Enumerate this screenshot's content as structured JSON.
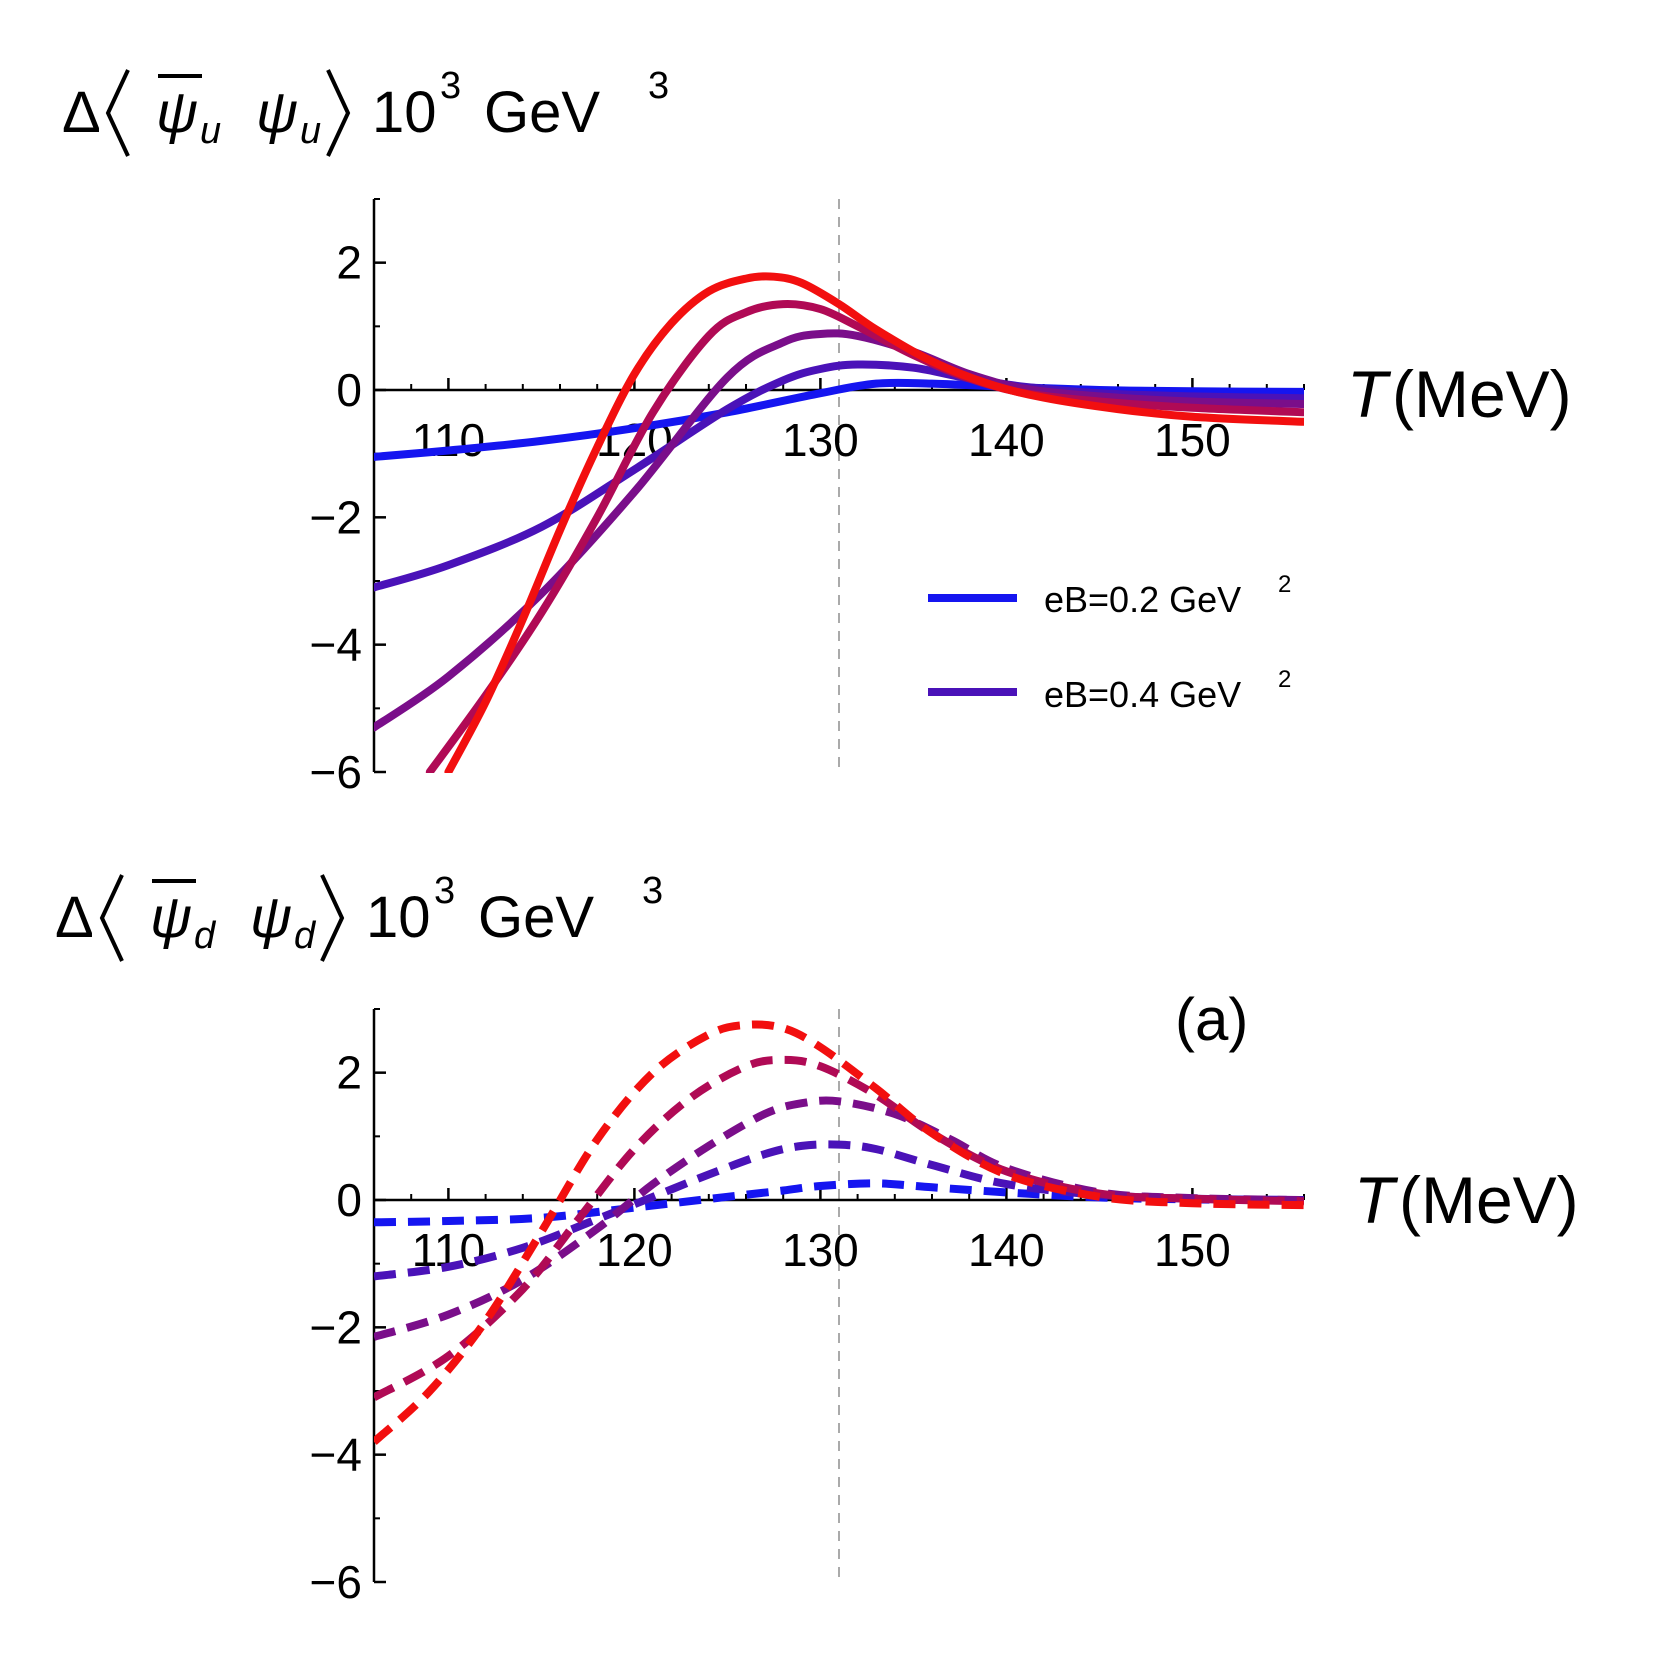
{
  "chart_data": [
    {
      "type": "line",
      "panel": "top",
      "ylabel": {
        "prefix": "Δ",
        "psi_bar": "ψ",
        "sub1": "u",
        "psi": "ψ",
        "sub2": "u",
        "unit": "10",
        "unit_exp": "3",
        "unit_tail": "GeV",
        "unit_tail_exp": "3"
      },
      "xlabel": {
        "var": "T",
        "unit": "(MeV)"
      },
      "xlim": [
        106,
        156
      ],
      "ylim": [
        -6,
        3
      ],
      "xticks": [
        "110",
        "120",
        "130",
        "140",
        "150"
      ],
      "yticks": [
        "2",
        "0",
        "−2",
        "−4",
        "−6"
      ],
      "xtick_values": [
        110,
        120,
        130,
        140,
        150
      ],
      "ytick_values": [
        2,
        0,
        -2,
        -4,
        -6
      ],
      "reference_line_x": 131,
      "line_style": "solid",
      "legend": [
        {
          "label": "eB=0.2 GeV",
          "exp": "2",
          "color": "#1515f0"
        },
        {
          "label": "eB=0.4 GeV",
          "exp": "2",
          "color": "#4a12b8"
        }
      ],
      "series": [
        {
          "color": "#1515f0",
          "x": [
            106,
            110,
            115,
            120,
            125,
            130,
            133,
            136,
            140,
            145,
            150,
            156
          ],
          "y": [
            -1.05,
            -0.95,
            -0.8,
            -0.6,
            -0.35,
            -0.05,
            0.1,
            0.1,
            0.05,
            0.0,
            -0.02,
            -0.03
          ]
        },
        {
          "color": "#4a12b8",
          "x": [
            106,
            110,
            115,
            120,
            125,
            128,
            130,
            132,
            135,
            138,
            141,
            145,
            150,
            156
          ],
          "y": [
            -3.1,
            -2.75,
            -2.15,
            -1.25,
            -0.3,
            0.15,
            0.33,
            0.4,
            0.35,
            0.18,
            0.05,
            -0.05,
            -0.1,
            -0.13
          ]
        },
        {
          "color": "#7a0e8a",
          "x": [
            106,
            110,
            115,
            120,
            125,
            128,
            130,
            132,
            135,
            138,
            141,
            145,
            150,
            156
          ],
          "y": [
            -5.3,
            -4.5,
            -3.2,
            -1.6,
            0.2,
            0.75,
            0.88,
            0.85,
            0.6,
            0.25,
            0.02,
            -0.1,
            -0.18,
            -0.22
          ]
        },
        {
          "color": "#b00a55",
          "x": [
            109,
            112,
            115,
            118,
            121,
            124,
            126,
            128,
            130,
            132,
            135,
            138,
            141,
            145,
            150,
            156
          ],
          "y": [
            -6.0,
            -4.8,
            -3.5,
            -2.0,
            -0.35,
            0.85,
            1.22,
            1.35,
            1.27,
            1.0,
            0.55,
            0.18,
            -0.05,
            -0.18,
            -0.28,
            -0.35
          ]
        },
        {
          "color": "#f20f0f",
          "x": [
            110,
            112,
            114,
            116,
            118,
            120,
            122,
            124,
            126,
            127.5,
            129,
            131,
            133,
            136,
            139,
            142,
            146,
            150,
            156
          ],
          "y": [
            -6.0,
            -4.9,
            -3.6,
            -2.2,
            -0.9,
            0.25,
            1.05,
            1.55,
            1.75,
            1.78,
            1.68,
            1.35,
            0.95,
            0.45,
            0.1,
            -0.12,
            -0.3,
            -0.42,
            -0.5
          ]
        }
      ]
    },
    {
      "type": "line",
      "panel": "bottom",
      "ylabel": {
        "prefix": "Δ",
        "psi_bar": "ψ",
        "sub1": "d",
        "psi": "ψ",
        "sub2": "d",
        "unit": "10",
        "unit_exp": "3",
        "unit_tail": "GeV",
        "unit_tail_exp": "3"
      },
      "xlabel": {
        "var": "T",
        "unit": "(MeV)"
      },
      "annotation": "(a)",
      "xlim": [
        106,
        156
      ],
      "ylim": [
        -6,
        3
      ],
      "xticks": [
        "110",
        "120",
        "130",
        "140",
        "150"
      ],
      "yticks": [
        "2",
        "0",
        "−2",
        "−4",
        "−6"
      ],
      "xtick_values": [
        110,
        120,
        130,
        140,
        150
      ],
      "ytick_values": [
        2,
        0,
        -2,
        -4,
        -6
      ],
      "reference_line_x": 131,
      "line_style": "dashed",
      "series": [
        {
          "color": "#1515f0",
          "x": [
            106,
            110,
            115,
            120,
            125,
            128,
            130,
            133,
            136,
            140,
            145,
            150,
            156
          ],
          "y": [
            -0.35,
            -0.33,
            -0.28,
            -0.12,
            0.05,
            0.15,
            0.22,
            0.26,
            0.2,
            0.12,
            0.04,
            0.01,
            0.0
          ]
        },
        {
          "color": "#4a12b8",
          "x": [
            106,
            110,
            114,
            118,
            121,
            124,
            127,
            129,
            131,
            133,
            136,
            140,
            145,
            150,
            156
          ],
          "y": [
            -1.2,
            -1.05,
            -0.75,
            -0.3,
            0.05,
            0.4,
            0.72,
            0.85,
            0.87,
            0.8,
            0.55,
            0.25,
            0.08,
            0.02,
            0.0
          ]
        },
        {
          "color": "#7a0e8a",
          "x": [
            106,
            110,
            114,
            118,
            121,
            124,
            127,
            129,
            131,
            134,
            137,
            140,
            145,
            150,
            156
          ],
          "y": [
            -2.15,
            -1.8,
            -1.25,
            -0.45,
            0.25,
            0.85,
            1.35,
            1.52,
            1.55,
            1.35,
            0.95,
            0.5,
            0.12,
            0.03,
            0.0
          ]
        },
        {
          "color": "#b00a55",
          "x": [
            106,
            110,
            114,
            117,
            120,
            123,
            126,
            128,
            130,
            133,
            136,
            140,
            145,
            150,
            156
          ],
          "y": [
            -3.1,
            -2.45,
            -1.4,
            -0.3,
            0.8,
            1.6,
            2.1,
            2.2,
            2.1,
            1.65,
            1.05,
            0.45,
            0.1,
            0.02,
            -0.02
          ]
        },
        {
          "color": "#f20f0f",
          "x": [
            106,
            109,
            112,
            115,
            118,
            121,
            124,
            126,
            128,
            130,
            133,
            136,
            140,
            145,
            150,
            156
          ],
          "y": [
            -3.8,
            -3.0,
            -1.9,
            -0.5,
            0.95,
            2.0,
            2.6,
            2.75,
            2.7,
            2.4,
            1.75,
            1.05,
            0.4,
            0.05,
            -0.05,
            -0.08
          ]
        }
      ]
    }
  ]
}
